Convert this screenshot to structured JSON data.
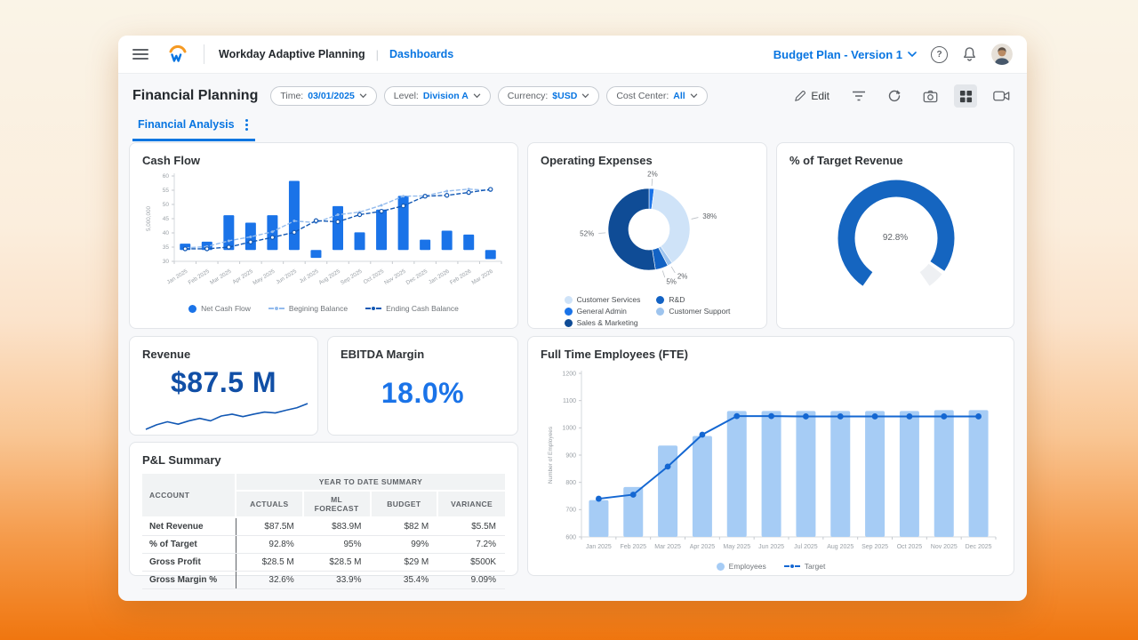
{
  "header": {
    "app_title": "Workday Adaptive Planning",
    "nav_link": "Dashboards",
    "version_label": "Budget Plan - Version 1",
    "help_glyph": "?"
  },
  "toolbar": {
    "page_title": "Financial Planning",
    "edit_label": "Edit",
    "filters": [
      {
        "label": "Time:",
        "value": "03/01/2025"
      },
      {
        "label": "Level:",
        "value": "Division A"
      },
      {
        "label": "Currency:",
        "value": "$USD"
      },
      {
        "label": "Cost Center:",
        "value": "All"
      }
    ],
    "tab_label": "Financial Analysis"
  },
  "cards": {
    "cash_flow_title": "Cash Flow",
    "opex_title": "Operating Expenses",
    "gauge_title": "% of Target Revenue",
    "revenue_title": "Revenue",
    "revenue_value": "$87.5 M",
    "ebitda_title": "EBITDA Margin",
    "ebitda_value": "18.0%",
    "pnl_title": "P&L Summary",
    "fte_title": "Full Time Employees (FTE)"
  },
  "pnl_table": {
    "col_account": "ACCOUNT",
    "group_header": "YEAR TO DATE SUMMARY",
    "columns": [
      "ACTUALS",
      "ML FORECAST",
      "BUDGET",
      "VARIANCE"
    ],
    "rows": [
      {
        "account": "Net Revenue",
        "values": [
          "$87.5M",
          "$83.9M",
          "$82 M",
          "$5.5M"
        ]
      },
      {
        "account": "% of Target",
        "values": [
          "92.8%",
          "95%",
          "99%",
          "7.2%"
        ]
      },
      {
        "account": "Gross Profit",
        "values": [
          "$28.5 M",
          "$28.5 M",
          "$29 M",
          "$500K"
        ]
      },
      {
        "account": "Gross Margin %",
        "values": [
          "32.6%",
          "33.9%",
          "35.4%",
          "9.09%"
        ]
      }
    ]
  },
  "chart_data": [
    {
      "id": "cash_flow",
      "type": "bar+line",
      "title": "Cash Flow",
      "ylabel": "5,000,000",
      "ylim": [
        30,
        60
      ],
      "yticks": [
        30,
        35,
        40,
        45,
        50,
        55,
        60
      ],
      "categories": [
        "Jan 2025",
        "Feb 2025",
        "Mar 2025",
        "Apr 2025",
        "May 2025",
        "Jun 2025",
        "Jul 2025",
        "Aug 2025",
        "Sep 2025",
        "Oct 2025",
        "Nov 2025",
        "Dec 2025",
        "Jan 2026",
        "Feb 2026",
        "Mar 2026"
      ],
      "bar_series": {
        "name": "Net Cash Flow",
        "color": "#1a73e8",
        "baseline": 34,
        "ranges": [
          [
            34,
            36.2
          ],
          [
            34,
            36.9
          ],
          [
            34,
            46.2
          ],
          [
            34,
            43.6
          ],
          [
            34,
            46.2
          ],
          [
            34,
            58.3
          ],
          [
            31.2,
            34
          ],
          [
            34,
            49.4
          ],
          [
            34,
            40.2
          ],
          [
            34,
            48.2
          ],
          [
            34,
            53.0
          ],
          [
            34,
            37.6
          ],
          [
            34,
            40.8
          ],
          [
            34,
            39.4
          ],
          [
            30.8,
            34
          ]
        ]
      },
      "series": [
        {
          "name": "Begining Balance",
          "color": "#93bbed",
          "values": [
            34.7,
            35.2,
            37.2,
            38.6,
            40.4,
            44.2,
            43.6,
            46.4,
            47.3,
            49.7,
            52.9,
            53.0,
            54.7,
            55.4,
            54.9
          ]
        },
        {
          "name": "Ending Cash Balance",
          "color": "#1258b4",
          "values": [
            34.4,
            34.4,
            35.0,
            36.8,
            38.4,
            40.2,
            44.3,
            43.9,
            46.4,
            47.6,
            49.5,
            52.9,
            53.2,
            54.2,
            55.3
          ]
        }
      ]
    },
    {
      "id": "operating_expenses",
      "type": "pie",
      "title": "Operating Expenses",
      "slices": [
        {
          "label": "General Admin",
          "value": 2,
          "color": "#1a73e8"
        },
        {
          "label": "Customer Services",
          "value": 38,
          "color": "#cfe3f8"
        },
        {
          "label": "Customer Support",
          "value": 2,
          "color": "#9ec4ee"
        },
        {
          "label": "R&D",
          "value": 5,
          "color": "#1262c4"
        },
        {
          "label": "Sales & Marketing",
          "value": 52,
          "color": "#0f4c96"
        }
      ],
      "legend_position": "bottom"
    },
    {
      "id": "target_revenue_gauge",
      "type": "gauge",
      "title": "% of Target Revenue",
      "value": 92.8,
      "display": "92.8%",
      "color": "#1565c0",
      "track_color": "#eef0f3"
    },
    {
      "id": "revenue_sparkline",
      "type": "line",
      "color": "#1258b4",
      "values": [
        1.5,
        3.0,
        4.0,
        3.2,
        4.3,
        5.1,
        4.3,
        5.9,
        6.5,
        5.7,
        6.5,
        7.2,
        6.9,
        7.8,
        8.6,
        10.0
      ]
    },
    {
      "id": "fte",
      "type": "bar+line",
      "title": "Full Time Employees (FTE)",
      "ylabel": "Number of Employees",
      "ylim": [
        600,
        1200
      ],
      "yticks": [
        600,
        700,
        800,
        900,
        1000,
        1100,
        1200
      ],
      "categories": [
        "Jan 2025",
        "Feb 2025",
        "Mar 2025",
        "Apr 2025",
        "May 2025",
        "Jun 2025",
        "Jul 2025",
        "Aug 2025",
        "Sep 2025",
        "Oct 2025",
        "Nov 2025",
        "Dec 2025"
      ],
      "bar_series": {
        "name": "Employees",
        "color": "#a6ccf5",
        "values": [
          735,
          783,
          935,
          970,
          1062,
          1062,
          1062,
          1062,
          1062,
          1062,
          1065,
          1065
        ]
      },
      "line_series": {
        "name": "Target",
        "color": "#1467d2",
        "values": [
          740,
          755,
          858,
          975,
          1043,
          1043,
          1042,
          1042,
          1042,
          1042,
          1042,
          1042
        ]
      }
    }
  ]
}
